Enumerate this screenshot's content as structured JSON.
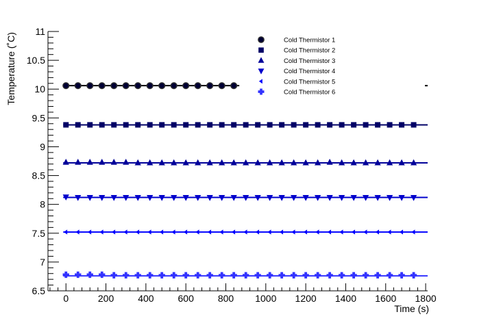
{
  "chart_data": {
    "type": "scatter",
    "xlabel": "Time (s)",
    "ylabel": "Temperature (˚C)",
    "xlim": [
      -90,
      1810
    ],
    "ylim": [
      6.5,
      11.0
    ],
    "x_ticks": [
      "0",
      "200",
      "400",
      "600",
      "800",
      "1000",
      "1200",
      "1400",
      "1600",
      "1800"
    ],
    "y_ticks": [
      "6.5",
      "7",
      "7.5",
      "8",
      "8.5",
      "9",
      "9.5",
      "10",
      "10.5",
      "11"
    ],
    "legend_placement": "top-right",
    "series": [
      {
        "name": "Cold Thermistor 1",
        "marker": "circle",
        "color": "#000033",
        "fit": 10.06,
        "x_start": 0,
        "x_end": 840,
        "values": [
          10.06,
          10.06,
          10.06,
          10.06,
          10.06,
          10.06,
          10.06,
          10.06,
          10.06,
          10.06,
          10.06,
          10.06,
          10.06,
          10.06,
          10.06
        ]
      },
      {
        "name": "Cold Thermistor 2",
        "marker": "square",
        "color": "#000066",
        "fit": 9.38,
        "x_start": 0,
        "x_end": 1740,
        "values": [
          9.38,
          9.38,
          9.38,
          9.38,
          9.38,
          9.38,
          9.38,
          9.38,
          9.38,
          9.38,
          9.38,
          9.38,
          9.38,
          9.38,
          9.38,
          9.38,
          9.38,
          9.38,
          9.38,
          9.38,
          9.38,
          9.38,
          9.38,
          9.38,
          9.38,
          9.38,
          9.38,
          9.38,
          9.38,
          9.38
        ]
      },
      {
        "name": "Cold Thermistor 3",
        "marker": "triangle-up",
        "color": "#000099",
        "fit": 8.72,
        "x_start": 0,
        "x_end": 1740,
        "values": [
          8.73,
          8.73,
          8.73,
          8.73,
          8.73,
          8.73,
          8.72,
          8.72,
          8.72,
          8.72,
          8.72,
          8.72,
          8.72,
          8.72,
          8.72,
          8.72,
          8.72,
          8.72,
          8.72,
          8.72,
          8.72,
          8.72,
          8.73,
          8.72,
          8.72,
          8.72,
          8.72,
          8.72,
          8.72,
          8.72
        ]
      },
      {
        "name": "Cold Thermistor 4",
        "marker": "triangle-down",
        "color": "#0000cc",
        "fit": 8.12,
        "x_start": 0,
        "x_end": 1740,
        "values": [
          8.13,
          8.12,
          8.12,
          8.12,
          8.12,
          8.12,
          8.12,
          8.12,
          8.12,
          8.12,
          8.12,
          8.12,
          8.12,
          8.12,
          8.12,
          8.12,
          8.12,
          8.12,
          8.12,
          8.12,
          8.12,
          8.12,
          8.12,
          8.12,
          8.12,
          8.12,
          8.12,
          8.12,
          8.12,
          8.12
        ]
      },
      {
        "name": "Cold Thermistor 5",
        "marker": "arrow-left",
        "color": "#0000ff",
        "fit": 7.52,
        "x_start": 0,
        "x_end": 1740,
        "values": [
          7.52,
          7.52,
          7.52,
          7.52,
          7.52,
          7.52,
          7.52,
          7.52,
          7.52,
          7.52,
          7.52,
          7.52,
          7.52,
          7.52,
          7.52,
          7.52,
          7.52,
          7.52,
          7.52,
          7.52,
          7.52,
          7.52,
          7.52,
          7.52,
          7.52,
          7.52,
          7.52,
          7.52,
          7.52,
          7.52
        ]
      },
      {
        "name": "Cold Thermistor 6",
        "marker": "cross",
        "color": "#3333ff",
        "fit": 6.76,
        "x_start": 0,
        "x_end": 1740,
        "values": [
          6.78,
          6.78,
          6.78,
          6.78,
          6.77,
          6.77,
          6.77,
          6.77,
          6.77,
          6.77,
          6.77,
          6.77,
          6.77,
          6.77,
          6.77,
          6.77,
          6.77,
          6.77,
          6.77,
          6.77,
          6.77,
          6.77,
          6.77,
          6.77,
          6.77,
          6.77,
          6.77,
          6.77,
          6.77,
          6.77
        ]
      }
    ]
  }
}
